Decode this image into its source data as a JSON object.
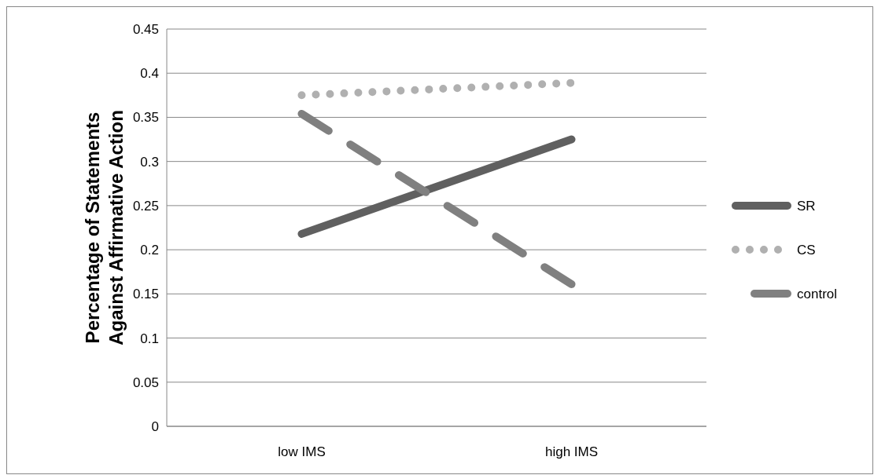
{
  "chart_data": {
    "type": "line",
    "ylabel": "Percentage of Statements Against Affirmative Action",
    "categories": [
      "low IMS",
      "high IMS"
    ],
    "series": [
      {
        "name": "SR",
        "color": "#606060",
        "values": [
          0.218,
          0.325
        ],
        "line_style": "solid"
      },
      {
        "name": "CS",
        "color": "#b0b0b0",
        "values": [
          0.375,
          0.389
        ],
        "line_style": "dotted"
      },
      {
        "name": "control",
        "color": "#808080",
        "values": [
          0.354,
          0.161
        ],
        "line_style": "dashed"
      }
    ],
    "ylim": [
      0,
      0.45
    ],
    "yticks": [
      0,
      0.05,
      0.1,
      0.15,
      0.2,
      0.25,
      0.3,
      0.35,
      0.4,
      0.45
    ],
    "grid": "y",
    "legend": "right",
    "marker": "none"
  }
}
